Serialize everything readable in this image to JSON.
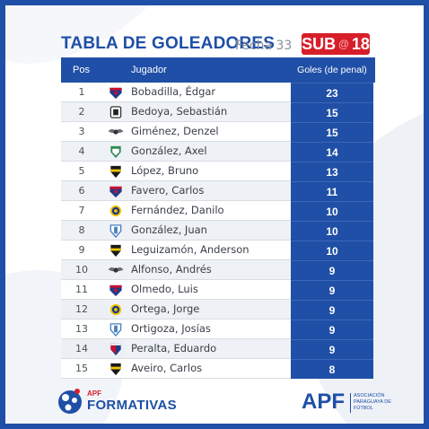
{
  "header": {
    "title": "TABLA DE GOLEADORES",
    "fecha": "Fecha 33",
    "badge_sub": "SUB",
    "badge_at": "@",
    "badge_num": "18"
  },
  "table": {
    "columns": {
      "pos": "Pos",
      "player": "Jugador",
      "goals": "Goles (de penal)"
    },
    "rows": [
      {
        "pos": "1",
        "player": "Bobadilla, Édgar",
        "goals": "23",
        "crest": "cerro-porteno-crest"
      },
      {
        "pos": "2",
        "player": "Bedoya, Sebastián",
        "goals": "15",
        "crest": "tacuary-crest"
      },
      {
        "pos": "3",
        "player": "Giménez, Denzel",
        "goals": "15",
        "crest": "winged-crest"
      },
      {
        "pos": "4",
        "player": "González, Axel",
        "goals": "14",
        "crest": "sportivo-ameliano-crest"
      },
      {
        "pos": "5",
        "player": "López, Bruno",
        "goals": "13",
        "crest": "guarani-crest"
      },
      {
        "pos": "6",
        "player": "Favero, Carlos",
        "goals": "11",
        "crest": "cerro-porteno-crest"
      },
      {
        "pos": "7",
        "player": "Fernández, Danilo",
        "goals": "10",
        "crest": "sportivo-luqueno-crest"
      },
      {
        "pos": "8",
        "player": "González, Juan",
        "goals": "10",
        "crest": "sportivo-trinidense-crest"
      },
      {
        "pos": "9",
        "player": "Leguizamón, Anderson",
        "goals": "10",
        "crest": "guarani-crest"
      },
      {
        "pos": "10",
        "player": "Alfonso, Andrés",
        "goals": "9",
        "crest": "winged-crest"
      },
      {
        "pos": "11",
        "player": "Olmedo, Luis",
        "goals": "9",
        "crest": "cerro-porteno-crest"
      },
      {
        "pos": "12",
        "player": "Ortega, Jorge",
        "goals": "9",
        "crest": "sportivo-luqueno-crest"
      },
      {
        "pos": "13",
        "player": "Ortigoza, Josías",
        "goals": "9",
        "crest": "sportivo-trinidense-crest"
      },
      {
        "pos": "14",
        "player": "Peralta, Eduardo",
        "goals": "9",
        "crest": "nacional-crest"
      },
      {
        "pos": "15",
        "player": "Aveiro, Carlos",
        "goals": "8",
        "crest": "guarani-crest"
      }
    ]
  },
  "footer": {
    "left_small": "APF",
    "left_big": "FORMATIVAS",
    "right_big": "APF",
    "right_full": "Asociación Paraguaya de Fútbol"
  },
  "colors": {
    "brand_blue": "#1f4fa6",
    "brand_red": "#d71f2a",
    "row_alt": "#ebeef3"
  }
}
